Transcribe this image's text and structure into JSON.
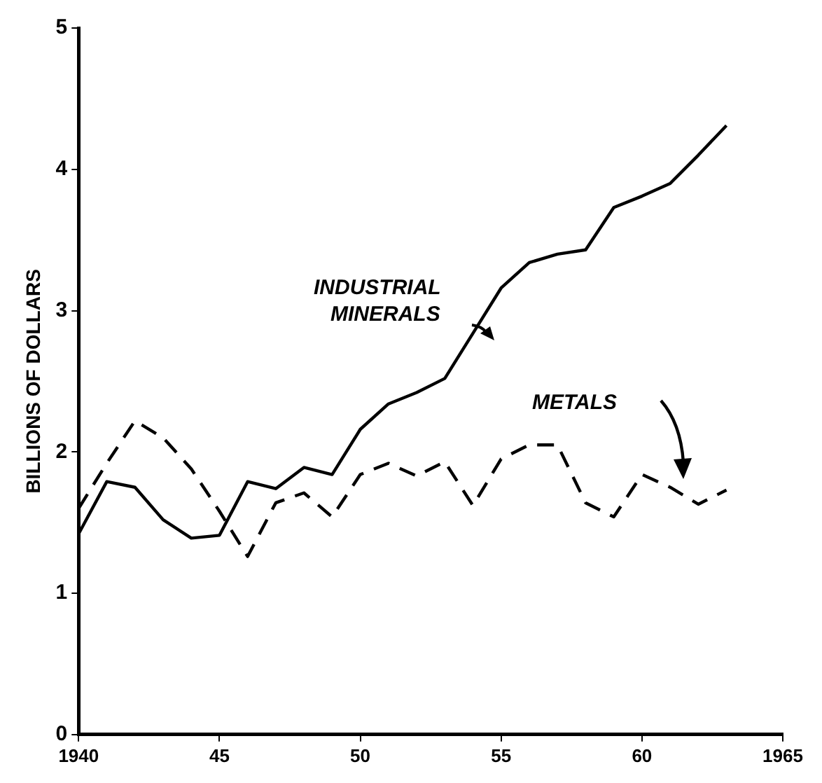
{
  "chart_data": {
    "type": "line",
    "ylabel": "BILLIONS OF DOLLARS",
    "x": [
      1940,
      1941,
      1942,
      1943,
      1944,
      1945,
      1946,
      1947,
      1948,
      1949,
      1950,
      1951,
      1952,
      1953,
      1954,
      1955,
      1956,
      1957,
      1958,
      1959,
      1960,
      1961,
      1962,
      1963
    ],
    "series": [
      {
        "name": "INDUSTRIAL MINERALS",
        "color": "#000000",
        "line_style": "solid",
        "values": [
          1.42,
          1.79,
          1.75,
          1.52,
          1.39,
          1.41,
          1.79,
          1.74,
          1.89,
          1.84,
          2.16,
          2.34,
          2.42,
          2.52,
          2.84,
          3.16,
          3.34,
          3.4,
          3.43,
          3.73,
          3.81,
          3.9,
          4.1,
          4.31
        ]
      },
      {
        "name": "METALS",
        "color": "#000000",
        "line_style": "dashed",
        "values": [
          1.6,
          1.92,
          2.22,
          2.1,
          1.88,
          1.58,
          1.26,
          1.64,
          1.71,
          1.54,
          1.84,
          1.92,
          1.83,
          1.93,
          1.62,
          1.95,
          2.05,
          2.05,
          1.64,
          1.54,
          1.84,
          1.75,
          1.63,
          1.73
        ]
      }
    ],
    "xlim": [
      1940,
      1965
    ],
    "xticks": [
      {
        "value": 1940,
        "label": "1940"
      },
      {
        "value": 1945,
        "label": "45"
      },
      {
        "value": 1950,
        "label": "50"
      },
      {
        "value": 1955,
        "label": "55"
      },
      {
        "value": 1960,
        "label": "60"
      },
      {
        "value": 1965,
        "label": "1965"
      }
    ],
    "ylim": [
      0,
      5
    ],
    "yticks": [
      0,
      1,
      2,
      3,
      4,
      5
    ],
    "grid": false,
    "legend": false,
    "marker": "none"
  }
}
